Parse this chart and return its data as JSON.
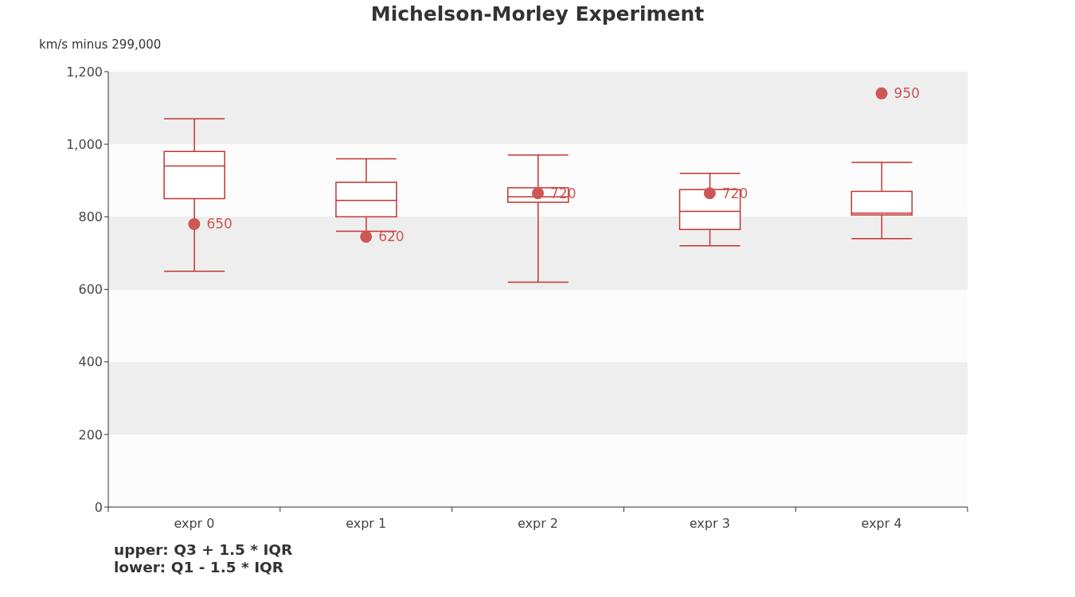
{
  "chart_data": {
    "type": "box",
    "title": "Michelson-Morley Experiment",
    "ylabel": "km/s minus 299,000",
    "categories": [
      "expr 0",
      "expr 1",
      "expr 2",
      "expr 3",
      "expr 4"
    ],
    "series": [
      {
        "color": "#c23531",
        "boxes": [
          {
            "low": 650,
            "q1": 850,
            "median": 940,
            "q3": 980,
            "high": 1070
          },
          {
            "low": 760,
            "q1": 800,
            "median": 845,
            "q3": 895,
            "high": 960
          },
          {
            "low": 620,
            "q1": 840,
            "median": 855,
            "q3": 880,
            "high": 970
          },
          {
            "low": 720,
            "q1": 765,
            "median": 815,
            "q3": 875,
            "high": 920
          },
          {
            "low": 740,
            "q1": 805,
            "median": 810,
            "q3": 870,
            "high": 950
          }
        ]
      },
      {
        "type": "scatter",
        "color": "#cd5755",
        "x": [
          "expr 0",
          "expr 1",
          "expr 2",
          "expr 3",
          "expr 4"
        ],
        "values": [
          780,
          745,
          865,
          865,
          1140
        ]
      }
    ],
    "ylim": [
      0,
      1200
    ],
    "yticks": [
      0,
      200,
      400,
      600,
      800,
      {
        "value": 1000,
        "label": "1,000"
      },
      {
        "value": 1200,
        "label": "1,200"
      }
    ],
    "annotations": [
      {
        "text": "650",
        "x": "expr 0",
        "y": 780
      },
      {
        "text": "620",
        "x": "expr 1",
        "y": 745
      },
      {
        "text": "720",
        "x": "expr 2",
        "y": 865
      },
      {
        "text": "720",
        "x": "expr 3",
        "y": 865
      },
      {
        "text": "950",
        "x": "expr 4",
        "y": 1140
      },
      "upper: Q3 + 1.5 * IQR",
      "lower: Q1 - 1.5 * IQR"
    ]
  }
}
